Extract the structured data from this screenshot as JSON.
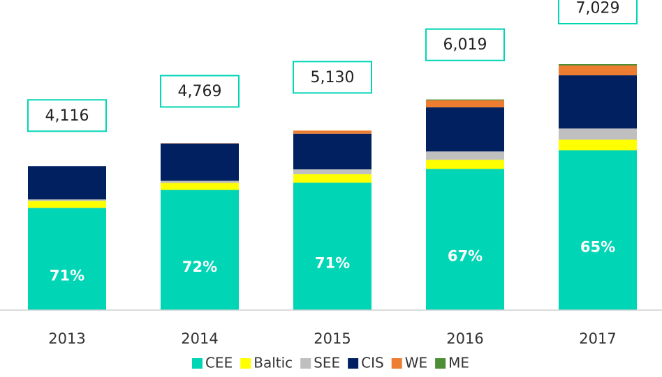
{
  "chart_data": {
    "type": "stacked_bar",
    "categories": [
      "2013",
      "2014",
      "2015",
      "2016",
      "2017"
    ],
    "series": [
      {
        "name": "CEE",
        "color": "#00d5b5",
        "values": [
          2922,
          3434,
          3642,
          4033,
          4569
        ]
      },
      {
        "name": "Baltic",
        "color": "#ffff00",
        "values": [
          200,
          200,
          240,
          260,
          300
        ]
      },
      {
        "name": "SEE",
        "color": "#bfbfbf",
        "values": [
          40,
          60,
          140,
          240,
          320
        ]
      },
      {
        "name": "CIS",
        "color": "#002060",
        "values": [
          954,
          1065,
          1020,
          1260,
          1520
        ]
      },
      {
        "name": "WE",
        "color": "#ed7d31",
        "values": [
          0,
          10,
          88,
          200,
          280
        ]
      },
      {
        "name": "ME",
        "color": "#4e8f35",
        "values": [
          0,
          0,
          0,
          26,
          40
        ]
      }
    ],
    "shares": [
      {
        "value": 71,
        "label": "71%"
      },
      {
        "value": 72,
        "label": "72%"
      },
      {
        "value": 71,
        "label": "71%"
      },
      {
        "value": 67,
        "label": "67%"
      },
      {
        "value": 65,
        "label": "65%"
      }
    ],
    "totals": [
      4116,
      4769,
      5130,
      6019,
      7029
    ],
    "total_labels": [
      "4,116",
      "4,769",
      "5,130",
      "6,019",
      "7,029"
    ],
    "box_color": "#00d5b5",
    "legend": "bottom"
  }
}
